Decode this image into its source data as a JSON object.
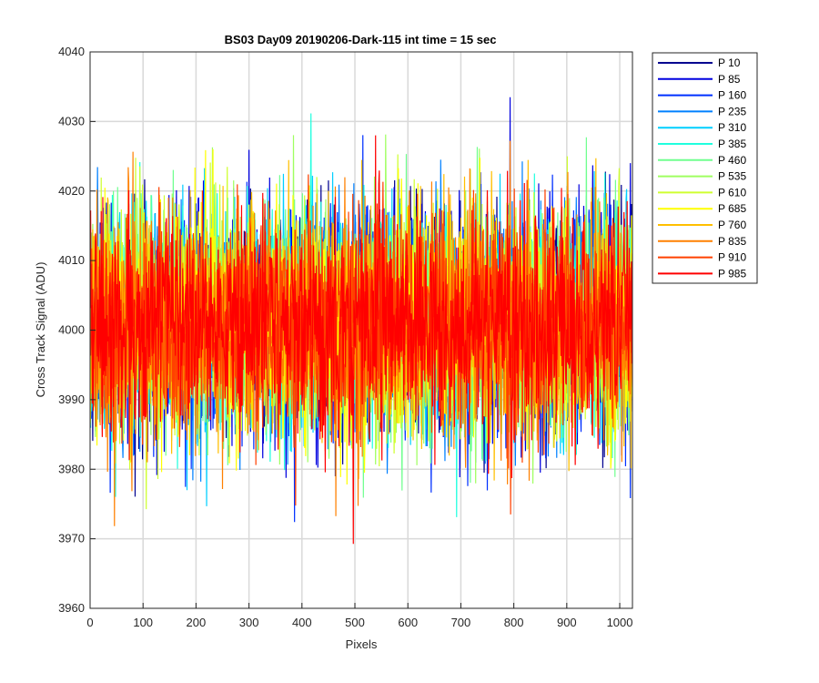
{
  "chart_data": {
    "type": "line",
    "title": "BS03 Day09 20190206-Dark-115 int time = 15 sec",
    "xlabel": "Pixels",
    "ylabel": "Cross Track Signal (ADU)",
    "xlim": [
      0,
      1024
    ],
    "ylim": [
      3960,
      4040
    ],
    "xticks": [
      "0",
      "100",
      "200",
      "300",
      "400",
      "500",
      "600",
      "700",
      "800",
      "900",
      "1000"
    ],
    "yticks": [
      "3960",
      "3970",
      "3980",
      "3990",
      "4000",
      "4010",
      "4020",
      "4030",
      "4040"
    ],
    "grid": true,
    "legend_position": "outside-right",
    "signal_summary": {
      "mean": 4001,
      "approx_std": 8,
      "min_observed": 3969,
      "max_observed": 4040
    },
    "series": [
      {
        "name": "P 10",
        "color": "#00008F"
      },
      {
        "name": "P 85",
        "color": "#0000DF"
      },
      {
        "name": "P 160",
        "color": "#0030FF"
      },
      {
        "name": "P 235",
        "color": "#0080FF"
      },
      {
        "name": "P 310",
        "color": "#00CFFF"
      },
      {
        "name": "P 385",
        "color": "#20FFDF"
      },
      {
        "name": "P 460",
        "color": "#70FF8F"
      },
      {
        "name": "P 535",
        "color": "#9FFF60"
      },
      {
        "name": "P 610",
        "color": "#CFFF30"
      },
      {
        "name": "P 685",
        "color": "#FFFF00"
      },
      {
        "name": "P 760",
        "color": "#FFBF00"
      },
      {
        "name": "P 835",
        "color": "#FF8000"
      },
      {
        "name": "P 910",
        "color": "#FF4000"
      },
      {
        "name": "P 985",
        "color": "#FF0000"
      }
    ]
  }
}
